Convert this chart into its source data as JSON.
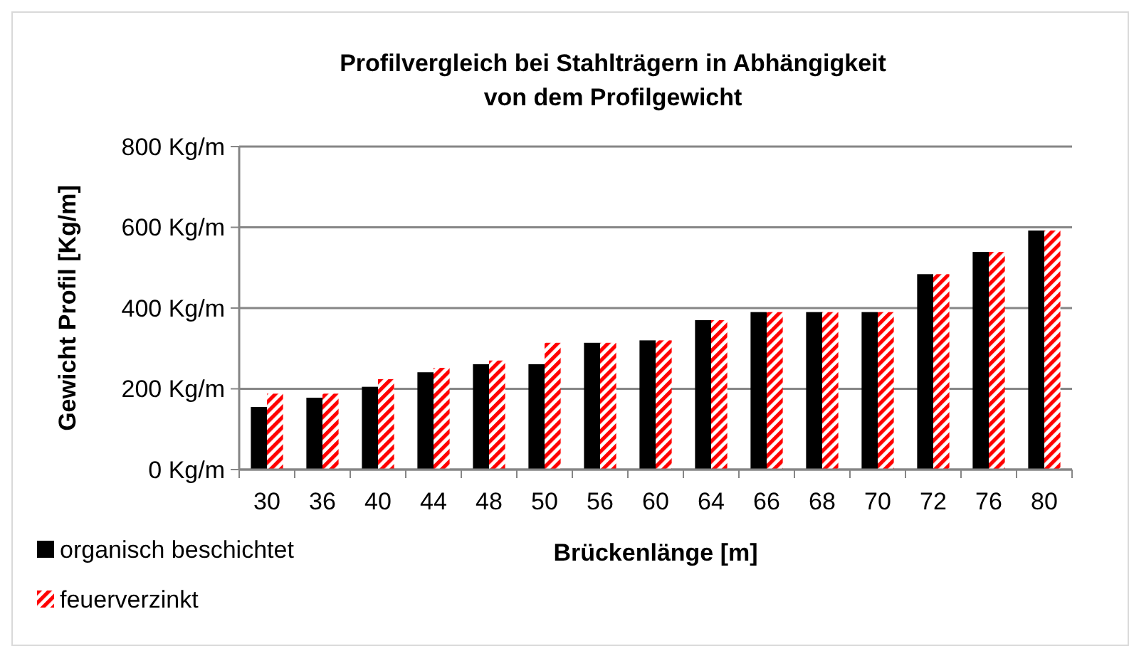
{
  "chart_data": {
    "type": "bar",
    "title": "Profilvergleich bei Stahlträgern in Abhängigkeit\nvon dem Profilgewicht",
    "xlabel": "Brückenlänge [m]",
    "ylabel": "Gewicht Profil [Kg/m]",
    "categories": [
      "30",
      "36",
      "40",
      "44",
      "48",
      "50",
      "56",
      "60",
      "64",
      "66",
      "68",
      "70",
      "72",
      "76",
      "80"
    ],
    "series": [
      {
        "name": "organisch beschichtet",
        "color": "#000000",
        "values": [
          155,
          178,
          205,
          241,
          261,
          261,
          314,
          320,
          370,
          390,
          390,
          390,
          484,
          539,
          592
        ]
      },
      {
        "name": "feuerverzinkt",
        "color": "#ff0000",
        "values": [
          188,
          188,
          224,
          252,
          270,
          314,
          314,
          320,
          370,
          390,
          390,
          390,
          484,
          539,
          592
        ]
      }
    ],
    "ylim": [
      0,
      800
    ],
    "yticks": [
      {
        "value": 0,
        "label": "0 Kg/m"
      },
      {
        "value": 200,
        "label": "200 Kg/m"
      },
      {
        "value": 400,
        "label": "400 Kg/m"
      },
      {
        "value": 600,
        "label": "600 Kg/m"
      },
      {
        "value": 800,
        "label": "800 Kg/m"
      }
    ],
    "grid": "y",
    "legend": "bottom left"
  }
}
